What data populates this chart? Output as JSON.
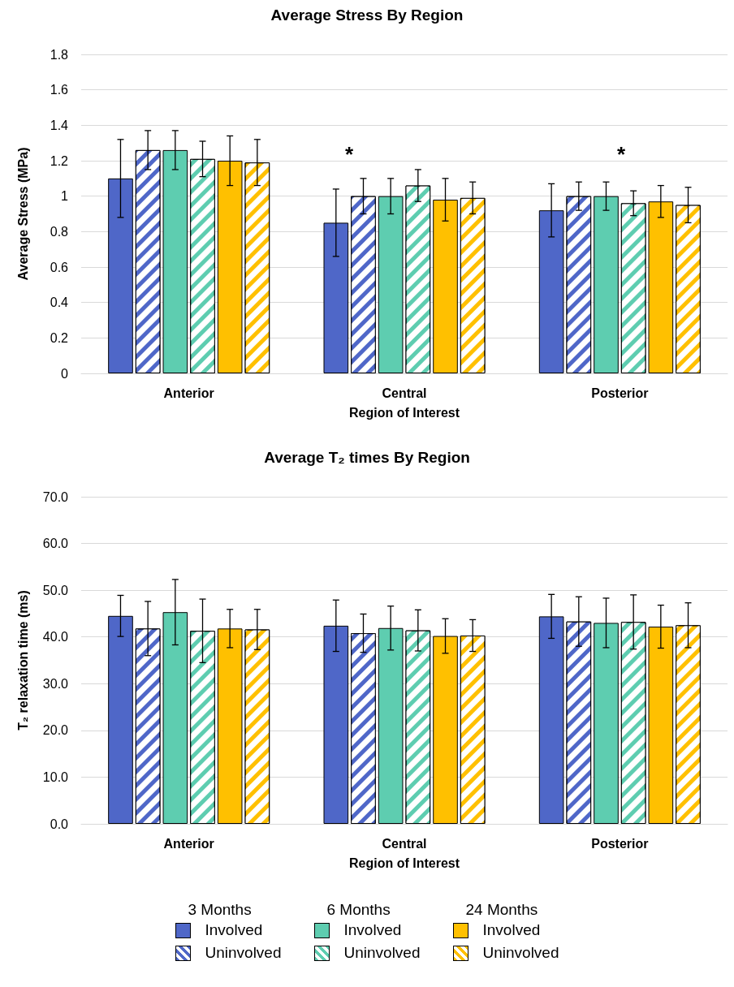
{
  "chart_data": [
    {
      "type": "bar",
      "title": "Average Stress By Region",
      "xlabel": "Region of Interest",
      "ylabel": "Average Stress (MPa)",
      "categories": [
        "Anterior",
        "Central",
        "Posterior"
      ],
      "ylim": [
        0,
        1.8
      ],
      "yticks": [
        0,
        0.2,
        0.4,
        0.6,
        0.8,
        1,
        1.2,
        1.4,
        1.6,
        1.8
      ],
      "grid": "y",
      "series": [
        {
          "color": "#4f67c8",
          "values": [
            1.1,
            0.85,
            0.92
          ],
          "errors": [
            0.22,
            0.19,
            0.15
          ]
        },
        {
          "color": "#4f67c8",
          "values": [
            1.26,
            1.0,
            1.0
          ],
          "errors": [
            0.11,
            0.1,
            0.08
          ]
        },
        {
          "color": "#5ecdb0",
          "values": [
            1.26,
            1.0,
            1.0
          ],
          "errors": [
            0.11,
            0.1,
            0.08
          ]
        },
        {
          "color": "#5ecdb0",
          "values": [
            1.21,
            1.06,
            0.96
          ],
          "errors": [
            0.1,
            0.09,
            0.07
          ]
        },
        {
          "color": "#ffc000",
          "values": [
            1.2,
            0.98,
            0.97
          ],
          "errors": [
            0.14,
            0.12,
            0.09
          ]
        },
        {
          "color": "#ffc000",
          "values": [
            1.19,
            0.99,
            0.95
          ],
          "errors": [
            0.13,
            0.09,
            0.1
          ]
        }
      ],
      "annotations": [
        "*",
        "*"
      ]
    },
    {
      "type": "bar",
      "title": "Average T₂ times By Region",
      "xlabel": "Region of Interest",
      "ylabel": "T₂ relaxation time (ms)",
      "categories": [
        "Anterior",
        "Central",
        "Posterior"
      ],
      "ylim": [
        0,
        70
      ],
      "yticks": [
        {
          "value": 0,
          "label": "0.0"
        },
        {
          "value": 10,
          "label": "10.0"
        },
        {
          "value": 20,
          "label": "20.0"
        },
        {
          "value": 30,
          "label": "30.0"
        },
        {
          "value": 40,
          "label": "40.0"
        },
        {
          "value": 50,
          "label": "50.0"
        },
        {
          "value": 60,
          "label": "60.0"
        },
        {
          "value": 70,
          "label": "70.0"
        }
      ],
      "grid": "y",
      "legend": "bottom",
      "series": [
        {
          "name": "Involved",
          "color": "#4f67c8",
          "values": [
            44.5,
            42.4,
            44.4
          ],
          "errors": [
            4.4,
            5.5,
            4.7
          ]
        },
        {
          "name": "Uninvolved",
          "color": "#4f67c8",
          "values": [
            41.8,
            40.8,
            43.3
          ],
          "errors": [
            5.8,
            4.1,
            5.3
          ]
        },
        {
          "name": "Involved",
          "color": "#5ecdb0",
          "values": [
            45.3,
            41.9,
            43.0
          ],
          "errors": [
            7.0,
            4.7,
            5.3
          ]
        },
        {
          "name": "Uninvolved",
          "color": "#5ecdb0",
          "values": [
            41.3,
            41.4,
            43.2
          ],
          "errors": [
            6.8,
            4.4,
            5.8
          ]
        },
        {
          "name": "Involved",
          "color": "#ffc000",
          "values": [
            41.8,
            40.2,
            42.2
          ],
          "errors": [
            4.1,
            3.7,
            4.6
          ]
        },
        {
          "name": "Uninvolved",
          "color": "#ffc000",
          "values": [
            41.6,
            40.3,
            42.5
          ],
          "errors": [
            4.3,
            3.4,
            4.8
          ]
        }
      ],
      "annotations": [
        "3 Months",
        "6 Months",
        "24 Months"
      ]
    }
  ]
}
